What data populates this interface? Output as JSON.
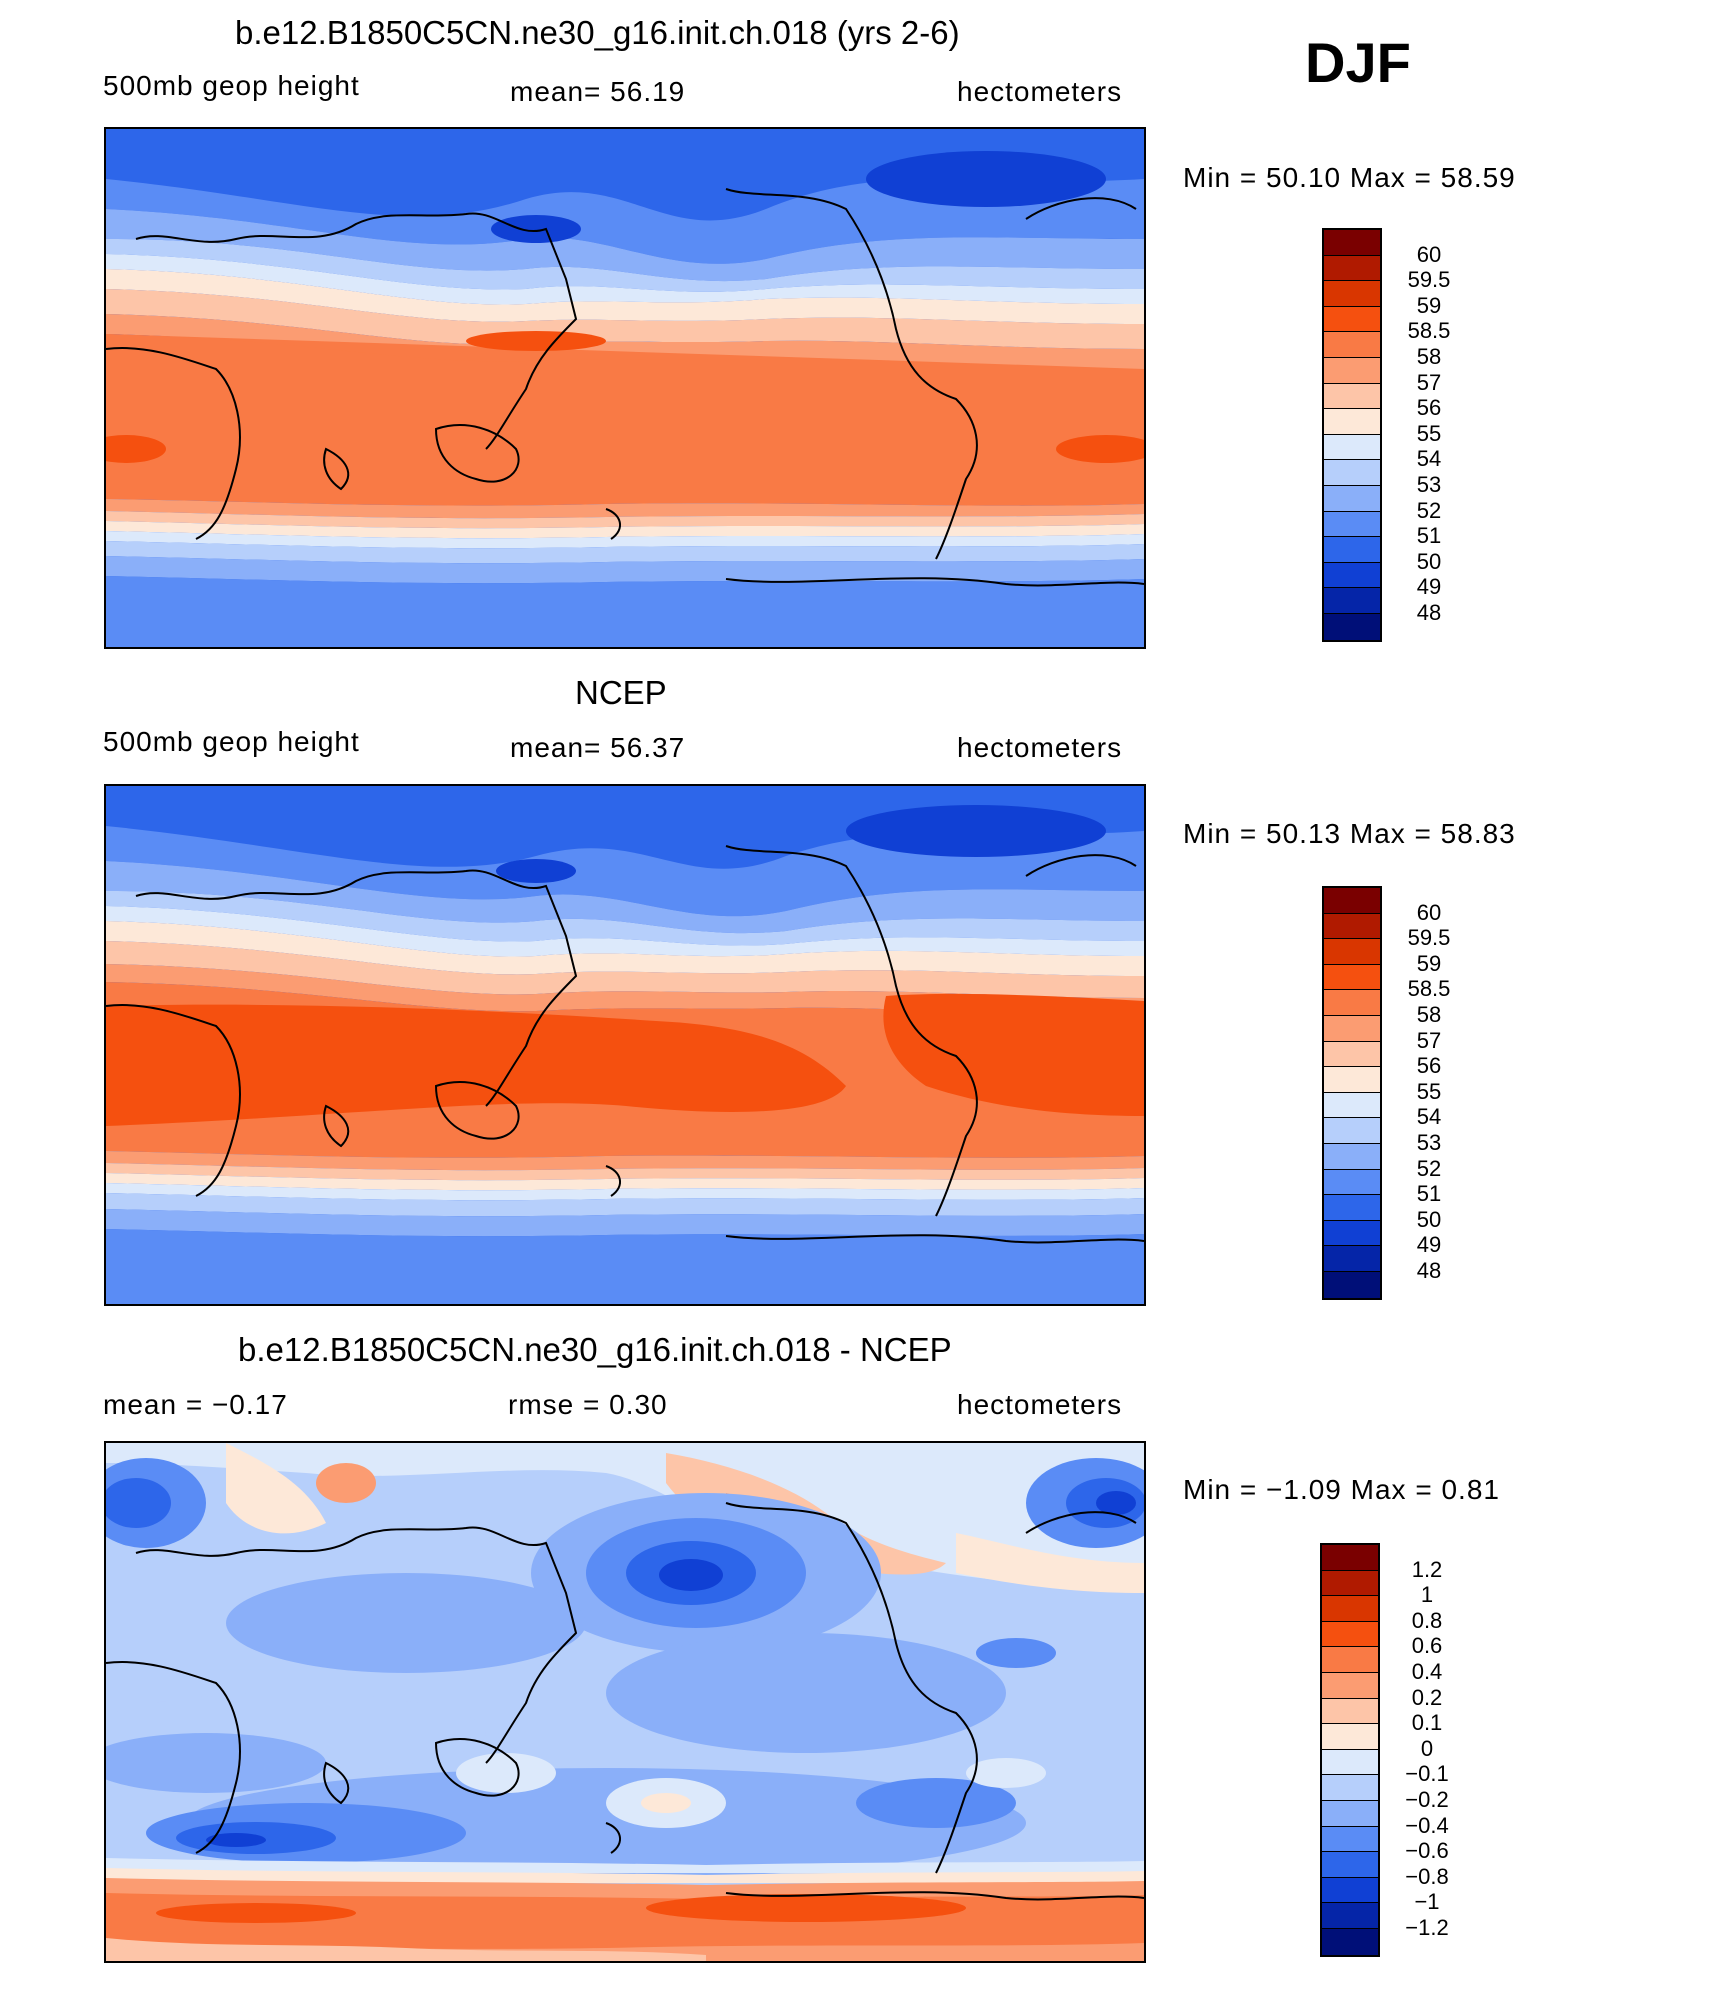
{
  "season": "DJF",
  "panels": [
    {
      "title": "b.e12.B1850C5CN.ne30_g16.init.ch.018 (yrs 2-6)",
      "left": "500mb  geop  height",
      "center": "mean=   56.19",
      "right": "hectometers",
      "minmax": "Min  =    50.10  Max  =    58.59",
      "levels": [
        "60",
        "59.5",
        "59",
        "58.5",
        "58",
        "57",
        "56",
        "55",
        "54",
        "53",
        "52",
        "51",
        "50",
        "49",
        "48"
      ],
      "colors": [
        "#7a0000",
        "#b01a00",
        "#d93600",
        "#f5500f",
        "#f97a45",
        "#fb9c72",
        "#fdc5a8",
        "#fde8d8",
        "#dce9fb",
        "#b6cffb",
        "#8aaff9",
        "#5a8cf5",
        "#2d66ea",
        "#1040d4",
        "#0525a8",
        "#000f78"
      ]
    },
    {
      "title": "NCEP",
      "left": "500mb  geop  height",
      "center": "mean=   56.37",
      "right": "hectometers",
      "minmax": "Min  =    50.13  Max  =    58.83",
      "levels": [
        "60",
        "59.5",
        "59",
        "58.5",
        "58",
        "57",
        "56",
        "55",
        "54",
        "53",
        "52",
        "51",
        "50",
        "49",
        "48"
      ],
      "colors": [
        "#7a0000",
        "#b01a00",
        "#d93600",
        "#f5500f",
        "#f97a45",
        "#fb9c72",
        "#fdc5a8",
        "#fde8d8",
        "#dce9fb",
        "#b6cffb",
        "#8aaff9",
        "#5a8cf5",
        "#2d66ea",
        "#1040d4",
        "#0525a8",
        "#000f78"
      ]
    },
    {
      "title": "b.e12.B1850C5CN.ne30_g16.init.ch.018 - NCEP",
      "left": "mean  =    −0.17",
      "center": "rmse  =     0.30",
      "right": "hectometers",
      "minmax": "Min  =   −1.09  Max  =     0.81",
      "levels": [
        "1.2",
        "1",
        "0.8",
        "0.6",
        "0.4",
        "0.2",
        "0.1",
        "0",
        "−0.1",
        "−0.2",
        "−0.4",
        "−0.6",
        "−0.8",
        "−1",
        "−1.2"
      ],
      "colors": [
        "#7a0000",
        "#b01a00",
        "#d93600",
        "#f5500f",
        "#f97a45",
        "#fb9c72",
        "#fdc5a8",
        "#fde8d8",
        "#dce9fb",
        "#b6cffb",
        "#8aaff9",
        "#5a8cf5",
        "#2d66ea",
        "#1040d4",
        "#0525a8",
        "#000f78"
      ]
    }
  ]
}
